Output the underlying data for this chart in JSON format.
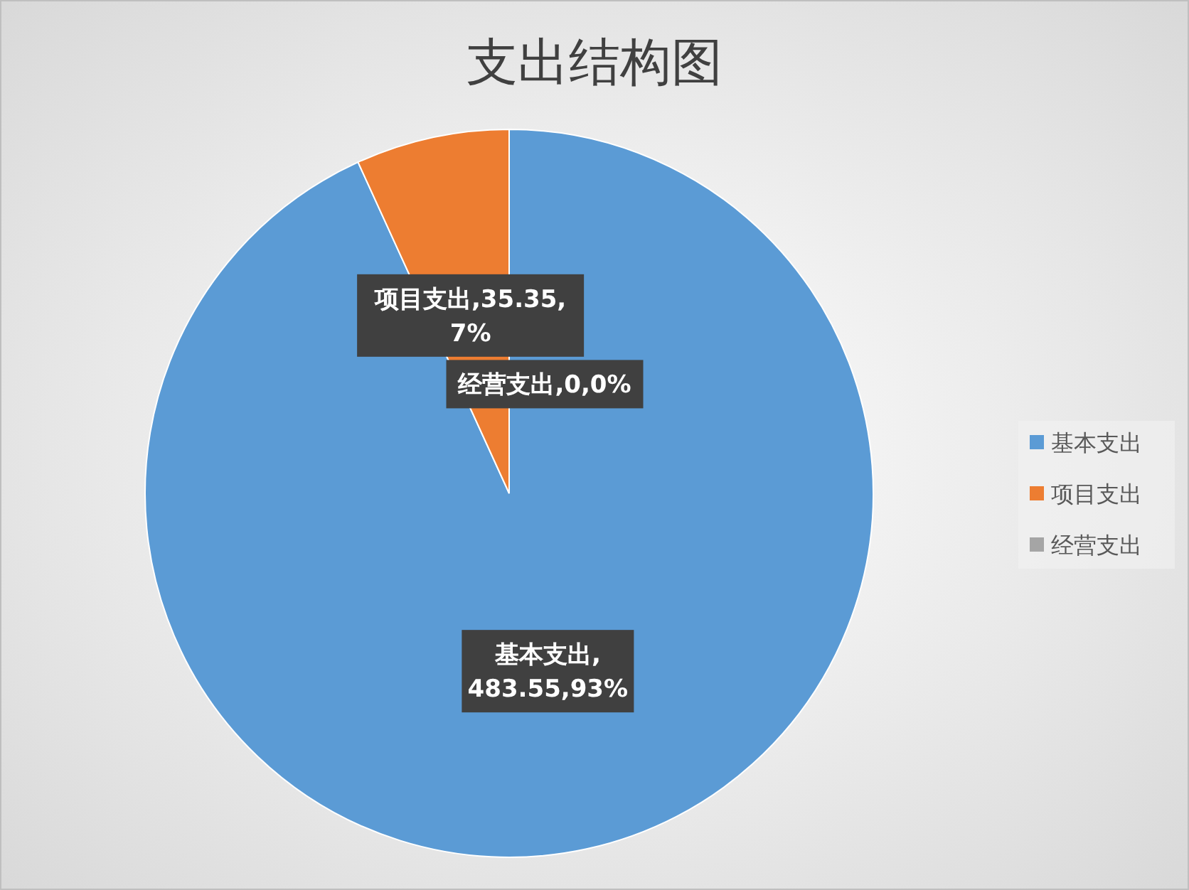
{
  "chart_data": {
    "type": "pie",
    "title": "支出结构图",
    "categories": [
      "基本支出",
      "项目支出",
      "经营支出"
    ],
    "values": [
      483.55,
      35.35,
      0
    ],
    "colors": [
      "#5b9bd5",
      "#ed7d31",
      "#a5a5a5"
    ],
    "value_labels": [
      "基本支出,\n483.55,93%",
      "项目支出,35.35,\n7%",
      "经营支出,0,0%"
    ],
    "legend": "right"
  }
}
